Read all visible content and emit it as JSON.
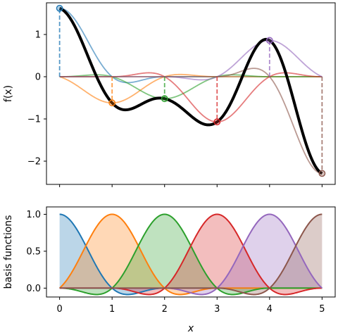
{
  "chart_data": [
    {
      "type": "line",
      "ylabel": "f(x)",
      "xlabel": "",
      "xlim": [
        -0.25,
        5.25
      ],
      "ylim": [
        -2.55,
        1.75
      ],
      "xticks": [
        0,
        1,
        2,
        3,
        4,
        5
      ],
      "yticks": [
        -2,
        -1,
        0,
        1
      ],
      "ytick_labels": [
        "−2",
        "−1",
        "0",
        "1"
      ],
      "nodes": {
        "x": [
          0,
          1,
          2,
          3,
          4,
          5
        ],
        "y": [
          1.62,
          -0.62,
          -0.52,
          -1.07,
          0.86,
          -2.29
        ]
      },
      "colors": [
        "#1f77b4",
        "#ff7f0e",
        "#2ca02c",
        "#d62728",
        "#9467bd",
        "#8c564b"
      ],
      "interpolant_color": "#000000"
    },
    {
      "type": "line",
      "ylabel": "basis functions",
      "xlabel": "x",
      "xlim": [
        -0.25,
        5.25
      ],
      "ylim": [
        -0.12,
        1.1
      ],
      "xticks": [
        0,
        1,
        2,
        3,
        4,
        5
      ],
      "xtick_labels": [
        "0",
        "1",
        "2",
        "3",
        "4",
        "5"
      ],
      "yticks": [
        0.0,
        0.5,
        1.0
      ],
      "ytick_labels": [
        "0.0",
        "0.5",
        "1.0"
      ],
      "colors": [
        "#1f77b4",
        "#ff7f0e",
        "#2ca02c",
        "#d62728",
        "#9467bd",
        "#8c564b"
      ]
    }
  ]
}
